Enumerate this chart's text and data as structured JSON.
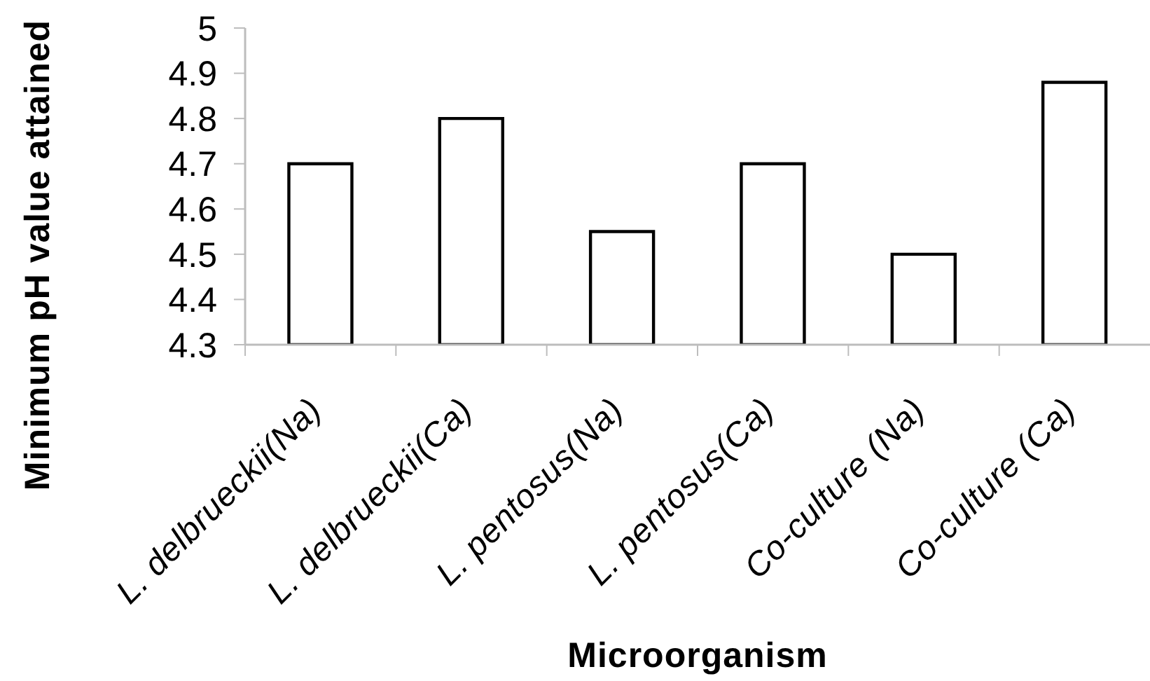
{
  "chart_data": {
    "type": "bar",
    "xlabel": "Microorganism",
    "ylabel": "Minimum pH value attained",
    "categories": [
      "L. delbrueckii(Na)",
      "L. delbrueckii(Ca)",
      "L. pentosus(Na)",
      "L. pentosus(Ca)",
      "Co-culture (Na)",
      "Co-culture (Ca)"
    ],
    "values": [
      4.7,
      4.8,
      4.55,
      4.7,
      4.5,
      4.88
    ],
    "color": "#ffffff",
    "ylim": [
      4.3,
      5
    ],
    "yticks": [
      4.3,
      4.4,
      4.5,
      4.6,
      4.7,
      4.8,
      4.9,
      5
    ]
  }
}
